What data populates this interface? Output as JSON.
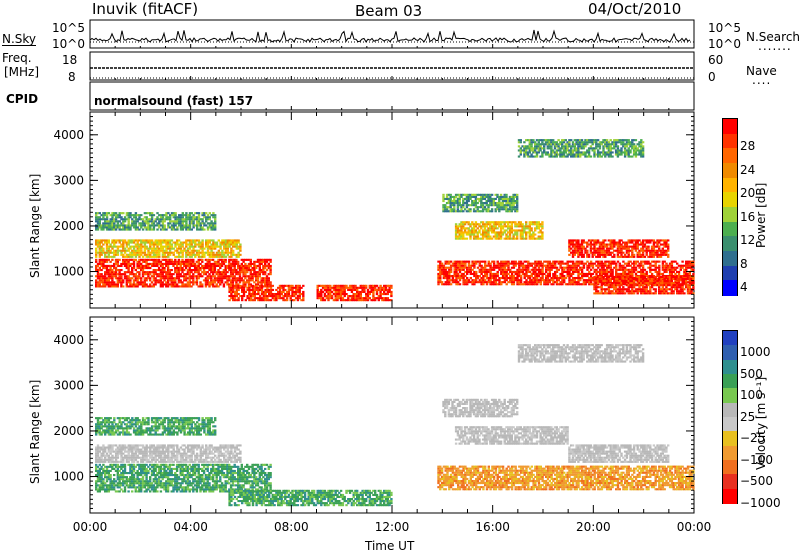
{
  "header": {
    "station": "Inuvik  (fitACF)",
    "beam": "Beam 03",
    "date": "04/Oct/2010"
  },
  "nsky_panel": {
    "left_label": "N.Sky",
    "right_label": "N.Search",
    "left_ticks": [
      "10^5",
      "10^0"
    ],
    "right_ticks": [
      "10^5",
      "10^0"
    ]
  },
  "freq_panel": {
    "left_label_top": "Freq.",
    "left_label_bottom": "[MHz]",
    "right_label": "Nave",
    "left_ticks": [
      "18",
      "8"
    ],
    "right_ticks": [
      "60",
      "0"
    ]
  },
  "cpid": {
    "label": "CPID",
    "value": "normalsound (fast) 157"
  },
  "chart_data": [
    {
      "type": "heatmap",
      "title": "",
      "quantity": "Power",
      "ylabel": "Slant Range [km]",
      "xlabel": "",
      "x_ticks": [
        "00:00",
        "04:00",
        "08:00",
        "12:00",
        "16:00",
        "20:00",
        "00:00"
      ],
      "y_ticks": [
        1000,
        2000,
        3000,
        4000
      ],
      "ylim": [
        200,
        4500
      ],
      "colorbar": {
        "label": "Power [dB]",
        "ticks": [
          "28",
          "24",
          "20",
          "16",
          "12",
          "8",
          "4"
        ],
        "colors": [
          "#ff0000",
          "#ff3300",
          "#ff6600",
          "#f08a00",
          "#ffb300",
          "#e8d400",
          "#9fd238",
          "#4caf50",
          "#3a8f6e",
          "#2f6f8f",
          "#1f3fb0",
          "#0000ff"
        ]
      },
      "regions": [
        {
          "t0": 0.2,
          "t1": 7.2,
          "r0": 650,
          "r1": 1250,
          "level": "high"
        },
        {
          "t0": 5.5,
          "t1": 8.5,
          "r0": 350,
          "r1": 700,
          "level": "high"
        },
        {
          "t0": 9.0,
          "t1": 12.0,
          "r0": 350,
          "r1": 700,
          "level": "high"
        },
        {
          "t0": 13.8,
          "t1": 24.0,
          "r0": 700,
          "r1": 1200,
          "level": "high"
        },
        {
          "t0": 20.0,
          "t1": 24.0,
          "r0": 500,
          "r1": 900,
          "level": "high"
        },
        {
          "t0": 19.0,
          "t1": 23.0,
          "r0": 1300,
          "r1": 1700,
          "level": "high"
        },
        {
          "t0": 14.5,
          "t1": 18.0,
          "r0": 1700,
          "r1": 2100,
          "level": "mid"
        },
        {
          "t0": 0.2,
          "t1": 6.0,
          "r0": 1300,
          "r1": 1700,
          "level": "mid"
        },
        {
          "t0": 0.2,
          "t1": 5.0,
          "r0": 1900,
          "r1": 2300,
          "level": "low"
        },
        {
          "t0": 14.0,
          "t1": 17.0,
          "r0": 2300,
          "r1": 2700,
          "level": "low"
        },
        {
          "t0": 17.0,
          "t1": 22.0,
          "r0": 3500,
          "r1": 3900,
          "level": "low"
        }
      ]
    },
    {
      "type": "heatmap",
      "title": "",
      "quantity": "Velocity",
      "ylabel": "Slant Range [km]",
      "xlabel": "Time UT",
      "x_ticks": [
        "00:00",
        "04:00",
        "08:00",
        "12:00",
        "16:00",
        "20:00",
        "00:00"
      ],
      "y_ticks": [
        1000,
        2000,
        3000,
        4000
      ],
      "ylim": [
        200,
        4500
      ],
      "colorbar": {
        "label": "Velocity [m s⁻¹]",
        "ticks": [
          "1000",
          "500",
          "100",
          "25",
          "−25",
          "−100",
          "−500",
          "−1000"
        ],
        "colors": [
          "#2040c0",
          "#2f5fb0",
          "#2f8f8f",
          "#3aa055",
          "#78c850",
          "#b8b8b8",
          "#c8c8c8",
          "#e8c020",
          "#f09a30",
          "#f07020",
          "#e83020",
          "#ff0000"
        ]
      },
      "regions": [
        {
          "t0": 0.2,
          "t1": 7.2,
          "r0": 650,
          "r1": 1250,
          "level": "green"
        },
        {
          "t0": 5.5,
          "t1": 12.0,
          "r0": 350,
          "r1": 700,
          "level": "green"
        },
        {
          "t0": 13.8,
          "t1": 24.0,
          "r0": 700,
          "r1": 1200,
          "level": "orange"
        },
        {
          "t0": 19.0,
          "t1": 23.0,
          "r0": 1300,
          "r1": 1700,
          "level": "grey"
        },
        {
          "t0": 14.5,
          "t1": 19.0,
          "r0": 1700,
          "r1": 2100,
          "level": "grey"
        },
        {
          "t0": 0.2,
          "t1": 6.0,
          "r0": 1300,
          "r1": 1700,
          "level": "grey"
        },
        {
          "t0": 0.2,
          "t1": 5.0,
          "r0": 1900,
          "r1": 2300,
          "level": "green"
        },
        {
          "t0": 14.0,
          "t1": 17.0,
          "r0": 2300,
          "r1": 2700,
          "level": "grey"
        },
        {
          "t0": 17.0,
          "t1": 22.0,
          "r0": 3500,
          "r1": 3900,
          "level": "grey"
        }
      ]
    }
  ]
}
